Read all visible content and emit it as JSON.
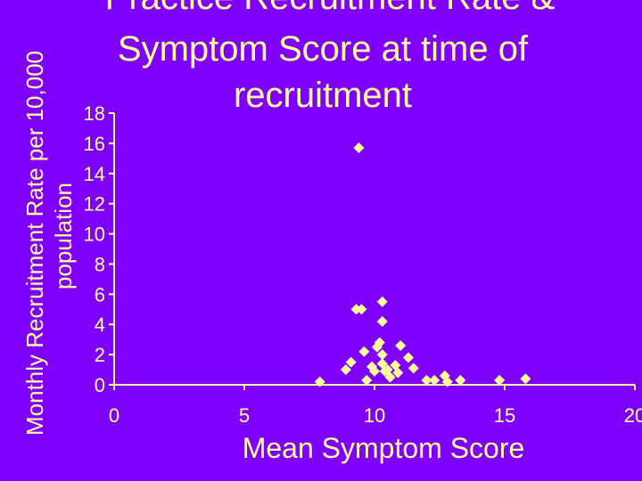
{
  "chart_data": {
    "type": "scatter",
    "title_lines": [
      "Practice Recruitment Rate &",
      "Symptom Score at time of",
      "recruitment"
    ],
    "xlabel": "Mean Symptom Score",
    "ylabel_lines": [
      "Monthly Recruitment Rate per 10,000",
      "population"
    ],
    "xlim": [
      0,
      20
    ],
    "ylim": [
      0,
      18
    ],
    "x_ticks": [
      0,
      5,
      10,
      15,
      20
    ],
    "y_ticks": [
      0,
      2,
      4,
      6,
      8,
      10,
      12,
      14,
      16,
      18
    ],
    "grid": false,
    "legend": "none",
    "marker": "diamond",
    "points": [
      {
        "x": 9.4,
        "y": 15.7
      },
      {
        "x": 9.3,
        "y": 5.0
      },
      {
        "x": 9.5,
        "y": 5.0
      },
      {
        "x": 10.3,
        "y": 5.5
      },
      {
        "x": 10.3,
        "y": 4.2
      },
      {
        "x": 7.9,
        "y": 0.2
      },
      {
        "x": 8.9,
        "y": 1.0
      },
      {
        "x": 9.1,
        "y": 1.5
      },
      {
        "x": 9.6,
        "y": 2.2
      },
      {
        "x": 9.7,
        "y": 0.3
      },
      {
        "x": 9.9,
        "y": 1.2
      },
      {
        "x": 10.0,
        "y": 0.9
      },
      {
        "x": 10.1,
        "y": 2.5
      },
      {
        "x": 10.2,
        "y": 2.8
      },
      {
        "x": 10.3,
        "y": 2.0
      },
      {
        "x": 10.3,
        "y": 1.4
      },
      {
        "x": 10.4,
        "y": 0.9
      },
      {
        "x": 10.5,
        "y": 1.0
      },
      {
        "x": 10.6,
        "y": 0.5
      },
      {
        "x": 10.8,
        "y": 1.3
      },
      {
        "x": 10.9,
        "y": 0.8
      },
      {
        "x": 11.0,
        "y": 2.6
      },
      {
        "x": 11.3,
        "y": 1.8
      },
      {
        "x": 11.5,
        "y": 1.1
      },
      {
        "x": 12.0,
        "y": 0.3
      },
      {
        "x": 12.3,
        "y": 0.3
      },
      {
        "x": 12.7,
        "y": 0.6
      },
      {
        "x": 12.8,
        "y": 0.2
      },
      {
        "x": 13.3,
        "y": 0.3
      },
      {
        "x": 14.8,
        "y": 0.3
      },
      {
        "x": 15.8,
        "y": 0.4
      }
    ]
  },
  "colors": {
    "background": "#8000ff",
    "foreground": "#ffff99",
    "marker": "#ffff99"
  }
}
